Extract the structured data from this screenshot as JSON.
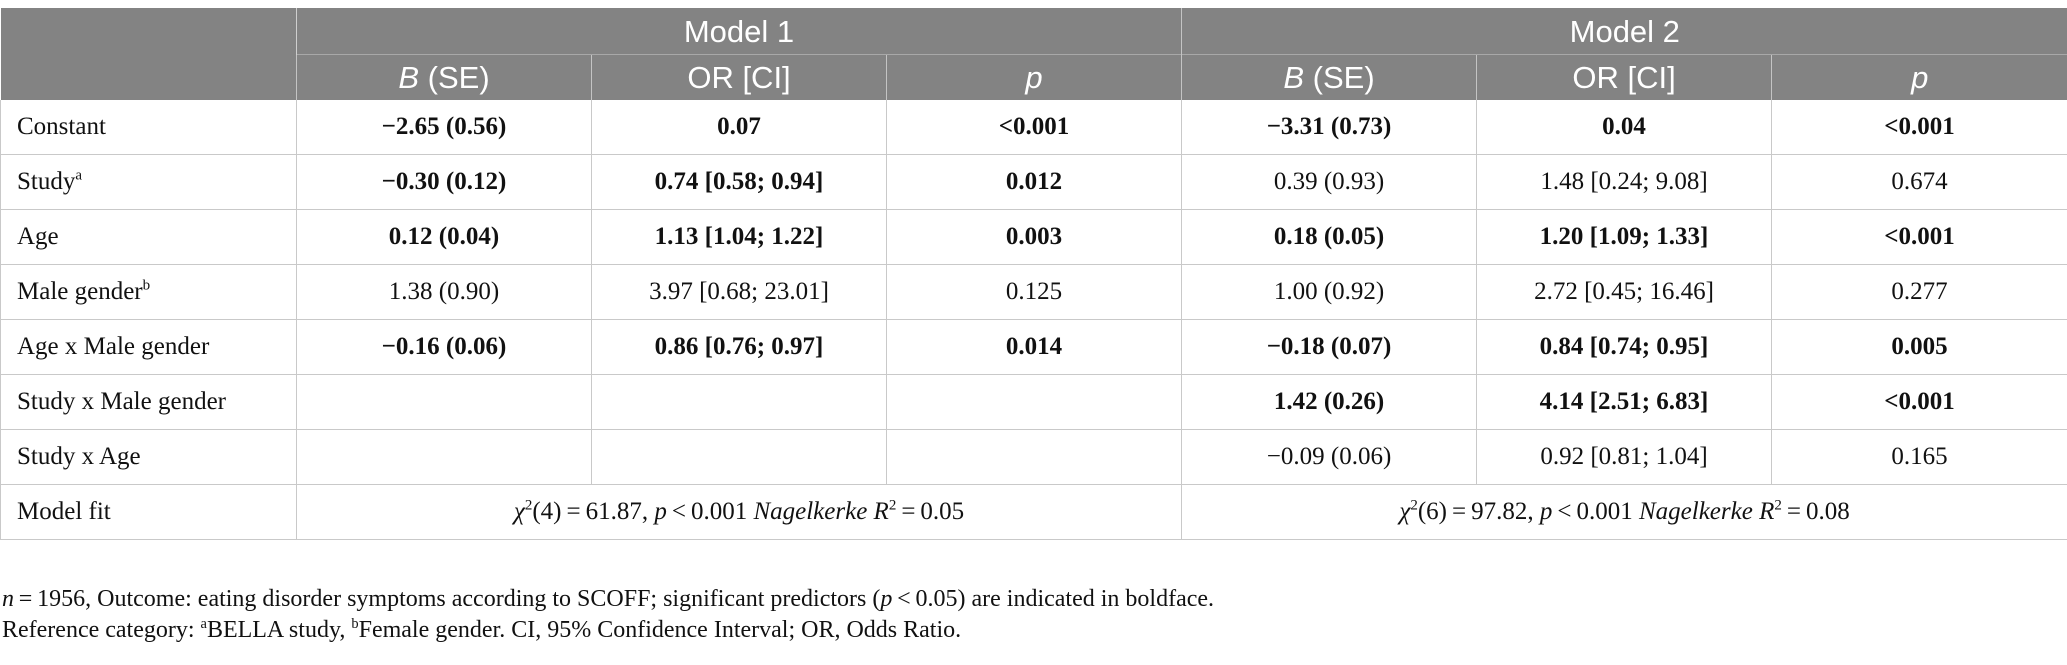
{
  "header": {
    "model1": "Model 1",
    "model2": "Model 2",
    "col_b": "B",
    "col_b_suffix": " (SE)",
    "col_or": "OR [CI]",
    "col_p": "p"
  },
  "rows": [
    {
      "label": "Constant",
      "sup": "",
      "m1": {
        "b": "−2.65 (0.56)",
        "or": "0.07",
        "p": "<0.001",
        "bold": true
      },
      "m2": {
        "b": "−3.31 (0.73)",
        "or": "0.04",
        "p": "<0.001",
        "bold": true
      }
    },
    {
      "label": "Study",
      "sup": "a",
      "m1": {
        "b": "−0.30 (0.12)",
        "or": "0.74 [0.58; 0.94]",
        "p": "0.012",
        "bold": true
      },
      "m2": {
        "b": "0.39 (0.93)",
        "or": "1.48 [0.24; 9.08]",
        "p": "0.674",
        "bold": false
      }
    },
    {
      "label": "Age",
      "sup": "",
      "m1": {
        "b": "0.12 (0.04)",
        "or": "1.13 [1.04; 1.22]",
        "p": "0.003",
        "bold": true
      },
      "m2": {
        "b": "0.18 (0.05)",
        "or": "1.20 [1.09; 1.33]",
        "p": "<0.001",
        "bold": true
      }
    },
    {
      "label": "Male gender",
      "sup": "b",
      "m1": {
        "b": "1.38 (0.90)",
        "or": "3.97 [0.68; 23.01]",
        "p": "0.125",
        "bold": false
      },
      "m2": {
        "b": "1.00 (0.92)",
        "or": "2.72 [0.45; 16.46]",
        "p": "0.277",
        "bold": false
      }
    },
    {
      "label": "Age x Male gender",
      "sup": "",
      "m1": {
        "b": "−0.16 (0.06)",
        "or": "0.86 [0.76; 0.97]",
        "p": "0.014",
        "bold": true
      },
      "m2": {
        "b": "−0.18 (0.07)",
        "or": "0.84 [0.74; 0.95]",
        "p": "0.005",
        "bold": true
      }
    },
    {
      "label": "Study x Male gender",
      "sup": "",
      "m1": {
        "b": "",
        "or": "",
        "p": "",
        "bold": false
      },
      "m2": {
        "b": "1.42 (0.26)",
        "or": "4.14 [2.51; 6.83]",
        "p": "<0.001",
        "bold": true
      }
    },
    {
      "label": "Study x Age",
      "sup": "",
      "m1": {
        "b": "",
        "or": "",
        "p": "",
        "bold": false
      },
      "m2": {
        "b": "−0.09 (0.06)",
        "or": "0.92 [0.81; 1.04]",
        "p": "0.165",
        "bold": false
      }
    }
  ],
  "fit": {
    "label": "Model fit",
    "m1": {
      "chi": "χ",
      "sup": "2",
      "df": "(4) = 61.87, ",
      "p": "p",
      "p_val": " < 0.001 ",
      "nag": "Nagelkerke R",
      "nag_sup": "2",
      "r2": " = 0.05"
    },
    "m2": {
      "chi": "χ",
      "sup": "2",
      "df": "(6) = 97.82, ",
      "p": "p",
      "p_val": " < 0.001 ",
      "nag": "Nagelkerke R",
      "nag_sup": "2",
      "r2": " = 0.08"
    }
  },
  "notes": {
    "n": "n",
    "line1_a": " = 1956, Outcome: eating disorder symptoms according to SCOFF; significant predictors (",
    "line1_p": "p",
    "line1_b": " < 0.05) are indicated in boldface.",
    "line2_a": "Reference category: ",
    "sup_a": "a",
    "line2_b": "BELLA study, ",
    "sup_b": "b",
    "line2_c": "Female gender. CI, 95% Confidence Interval; OR, Odds Ratio."
  }
}
